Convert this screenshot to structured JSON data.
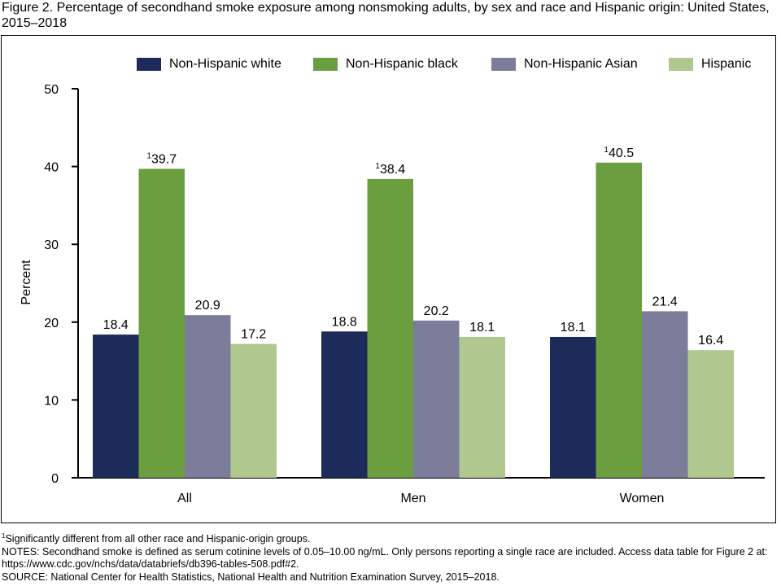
{
  "figure": {
    "title": "Figure 2. Percentage of secondhand smoke exposure among nonsmoking adults, by sex and race and Hispanic origin: United States, 2015–2018"
  },
  "chart_data": {
    "type": "bar",
    "title": "Percentage of secondhand smoke exposure among nonsmoking adults, by sex and race and Hispanic origin: United States, 2015–2018",
    "xlabel": "",
    "ylabel": "Percent",
    "ylim": [
      0,
      50
    ],
    "yticks": [
      0,
      10,
      20,
      30,
      40,
      50
    ],
    "categories": [
      "All",
      "Men",
      "Women"
    ],
    "legend_position": "top",
    "series": [
      {
        "name": "Non-Hispanic white",
        "color": "#1c2b5a",
        "values": [
          18.4,
          18.8,
          18.1
        ],
        "footnote": [
          "",
          "",
          ""
        ]
      },
      {
        "name": "Non-Hispanic black",
        "color": "#6a9e3f",
        "values": [
          39.7,
          38.4,
          40.5
        ],
        "footnote": [
          "1",
          "1",
          "1"
        ]
      },
      {
        "name": "Non-Hispanic Asian",
        "color": "#7b7d9b",
        "values": [
          20.9,
          20.2,
          21.4
        ],
        "footnote": [
          "",
          "",
          ""
        ]
      },
      {
        "name": "Hispanic",
        "color": "#b0c78f",
        "values": [
          17.2,
          18.1,
          16.4
        ],
        "footnote": [
          "",
          "",
          ""
        ]
      }
    ]
  },
  "notes": {
    "footnote_marker": "1",
    "footnote_text": "Significantly different from all other race and Hispanic-origin groups.",
    "notes_line": "NOTES: Secondhand smoke is defined as serum cotinine levels of 0.05–10.00 ng/mL. Only persons reporting a single race are included. Access data table for Figure 2 at: https://www.cdc.gov/nchs/data/databriefs/db396-tables-508.pdf#2.",
    "source_line": "SOURCE: National Center for Health Statistics, National Health and Nutrition Examination Survey, 2015–2018."
  }
}
